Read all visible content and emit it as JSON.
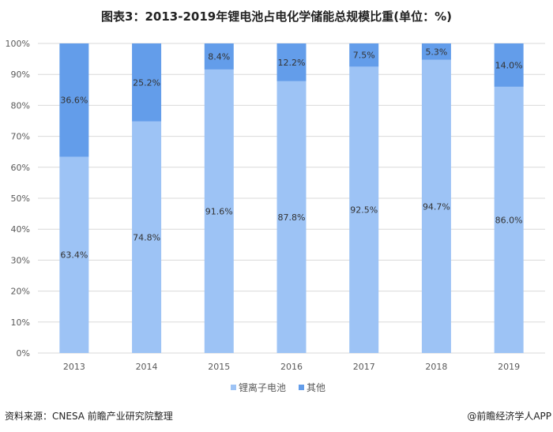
{
  "chart_data": {
    "type": "bar",
    "stacked": true,
    "title": "图表3：2013-2019年锂电池占电化学储能总规模比重(单位：%)",
    "categories": [
      "2013",
      "2014",
      "2015",
      "2016",
      "2017",
      "2018",
      "2019"
    ],
    "series": [
      {
        "name": "锂离子电池",
        "values": [
          63.4,
          74.8,
          91.6,
          87.8,
          92.5,
          94.7,
          86.0
        ],
        "labels": [
          "63.4%",
          "74.8%",
          "91.6%",
          "87.8%",
          "92.5%",
          "94.7%",
          "86.0%"
        ],
        "color": "#9DC3F5"
      },
      {
        "name": "其他",
        "values": [
          36.6,
          25.2,
          8.4,
          12.2,
          7.5,
          5.3,
          14.0
        ],
        "labels": [
          "36.6%",
          "25.2%",
          "8.4%",
          "12.2%",
          "7.5%",
          "5.3%",
          "14.0%"
        ],
        "color": "#639DEA"
      }
    ],
    "ylim": [
      0,
      100
    ],
    "yticks": [
      "0%",
      "10%",
      "20%",
      "30%",
      "40%",
      "50%",
      "60%",
      "70%",
      "80%",
      "90%",
      "100%"
    ],
    "grid": true,
    "legend": "bottom"
  },
  "footer": {
    "source": "资料来源：CNESA 前瞻产业研究院整理",
    "credit": "@前瞻经济学人APP"
  }
}
